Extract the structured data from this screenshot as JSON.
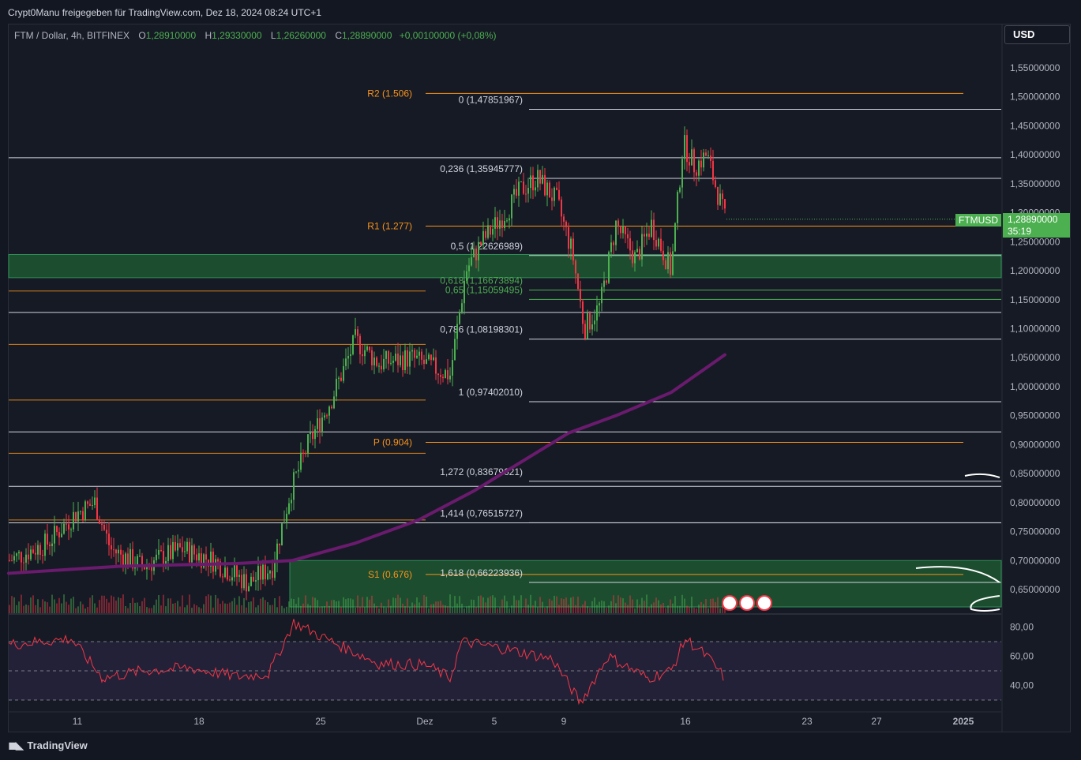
{
  "header": {
    "attribution": "Crypt0Manu freigegeben für TradingView.com, Dez 18, 2024 08:24 UTC+1"
  },
  "legend": {
    "symbol": "FTM / Dollar, 4h, BITFINEX",
    "open_label": "O",
    "open": "1,28910000",
    "high_label": "H",
    "high": "1,29330000",
    "low_label": "L",
    "low": "1,26260000",
    "close_label": "C",
    "close": "1,28890000",
    "change": "+0,00100000 (+0,08%)"
  },
  "currency_button": "USD",
  "price_tag": {
    "symbol": "FTMUSD",
    "price": "1,28890000",
    "countdown": "35:19"
  },
  "branding": "TradingView",
  "colors": {
    "background": "#131722",
    "up": "#4caf50",
    "down": "#f23645",
    "pivot": "#f7931a",
    "ma": "#6a1b6e",
    "rsi": "#f23645",
    "zone": "#1e5a32"
  },
  "chart_data": {
    "type": "candlestick",
    "title": "FTM / Dollar, 4h, BITFINEX",
    "ylim": [
      0.6,
      1.6
    ],
    "price_ticks": [
      {
        "v": 1.55,
        "label": "1,55000000"
      },
      {
        "v": 1.5,
        "label": "1,50000000"
      },
      {
        "v": 1.45,
        "label": "1,45000000"
      },
      {
        "v": 1.4,
        "label": "1,40000000"
      },
      {
        "v": 1.35,
        "label": "1,35000000"
      },
      {
        "v": 1.3,
        "label": "1,30000000"
      },
      {
        "v": 1.25,
        "label": "1,25000000"
      },
      {
        "v": 1.2,
        "label": "1,20000000"
      },
      {
        "v": 1.15,
        "label": "1,15000000"
      },
      {
        "v": 1.1,
        "label": "1,10000000"
      },
      {
        "v": 1.05,
        "label": "1,05000000"
      },
      {
        "v": 1.0,
        "label": "1,00000000"
      },
      {
        "v": 0.95,
        "label": "0,95000000"
      },
      {
        "v": 0.9,
        "label": "0,90000000"
      },
      {
        "v": 0.85,
        "label": "0,85000000"
      },
      {
        "v": 0.8,
        "label": "0,80000000"
      },
      {
        "v": 0.75,
        "label": "0,75000000"
      },
      {
        "v": 0.7,
        "label": "0,70000000"
      },
      {
        "v": 0.65,
        "label": "0,65000000"
      }
    ],
    "date_ticks": [
      {
        "label": "11"
      },
      {
        "label": "18"
      },
      {
        "label": "25"
      },
      {
        "label": "Dez"
      },
      {
        "label": "5"
      },
      {
        "label": "9"
      },
      {
        "label": "16"
      },
      {
        "label": "23"
      },
      {
        "label": "27"
      },
      {
        "label": "2025",
        "bold": true
      }
    ],
    "fib_levels": [
      {
        "ratio": "0",
        "value": 1.47851967,
        "label": "0 (1,47851967)"
      },
      {
        "ratio": "0.236",
        "value": 1.35945777,
        "label": "0,236 (1,35945777)"
      },
      {
        "ratio": "0.5",
        "value": 1.22626989,
        "label": "0,5 (1,22626989)"
      },
      {
        "ratio": "0.618",
        "value": 1.16673894,
        "label": "0,618 (1,16673894)"
      },
      {
        "ratio": "0.65",
        "value": 1.15059495,
        "label": "0,65 (1,15059495)"
      },
      {
        "ratio": "0.786",
        "value": 1.08198301,
        "label": "0,786 (1,08198301)"
      },
      {
        "ratio": "1",
        "value": 0.9740201,
        "label": "1 (0,97402010)"
      },
      {
        "ratio": "1.272",
        "value": 0.83679621,
        "label": "1,272 (0,83679621)"
      },
      {
        "ratio": "1.414",
        "value": 0.76515727,
        "label": "1,414 (0,76515727)"
      },
      {
        "ratio": "1.618",
        "value": 0.66223936,
        "label": "1,618 (0,66223936)"
      }
    ],
    "pivots": [
      {
        "name": "R2",
        "value": 1.506,
        "label": "R2 (1.506)"
      },
      {
        "name": "R1",
        "value": 1.277,
        "label": "R1 (1.277)"
      },
      {
        "name": "P",
        "value": 0.904,
        "label": "P (0.904)"
      },
      {
        "name": "S1",
        "value": 0.676,
        "label": "S1 (0.676)"
      }
    ],
    "horizontal_lines": [
      1.395,
      1.128,
      0.922,
      0.828,
      0.765
    ],
    "old_pivot_lines": [
      1.165,
      1.073,
      0.977,
      0.885,
      0.77
    ],
    "zones": [
      {
        "top": 1.228,
        "bottom": 1.188
      },
      {
        "top": 0.7,
        "bottom": 0.62
      }
    ],
    "close_price": 1.2889,
    "rsi": {
      "ylim": [
        25,
        85
      ],
      "ticks": [
        {
          "v": 80,
          "label": "80,00"
        },
        {
          "v": 60,
          "label": "60,00"
        },
        {
          "v": 40,
          "label": "40,00"
        }
      ],
      "bands": [
        70,
        50,
        30
      ]
    }
  }
}
